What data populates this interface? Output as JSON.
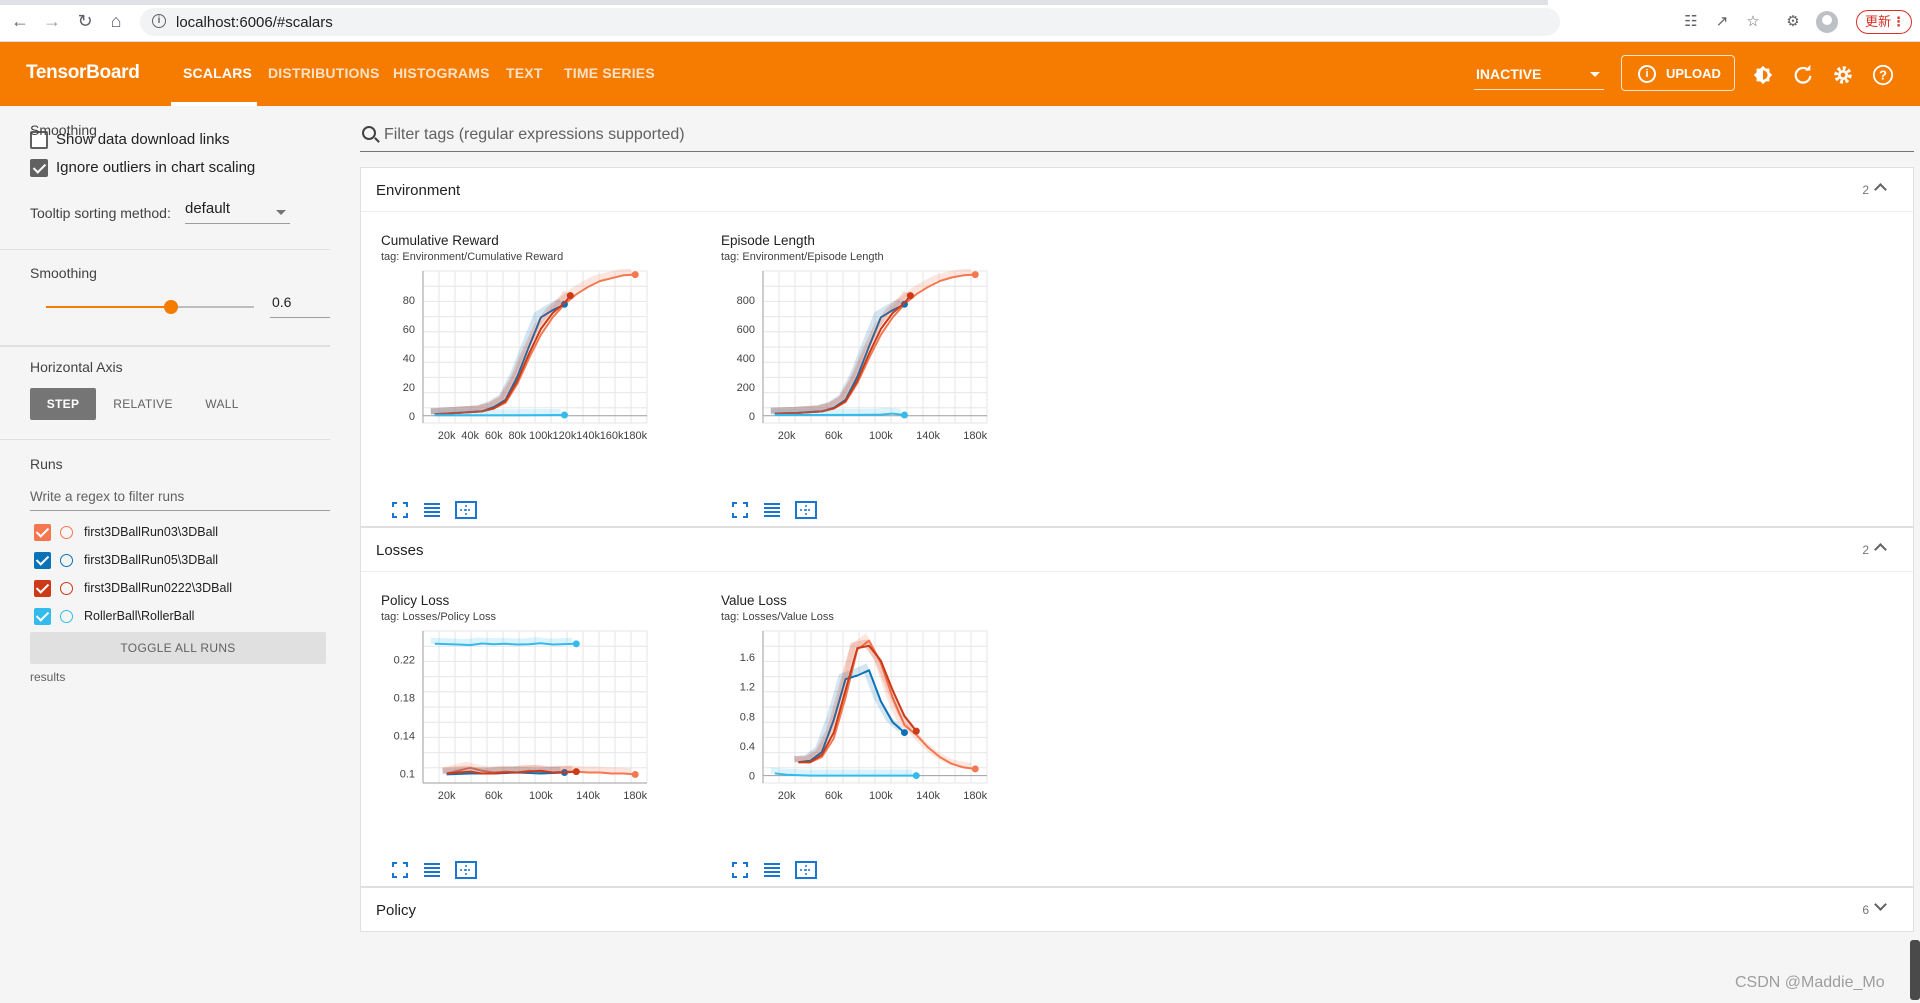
{
  "browser": {
    "url": "localhost:6006/#scalars",
    "update_label": "更新"
  },
  "header": {
    "logo": "TensorBoard",
    "tabs": [
      "SCALARS",
      "DISTRIBUTIONS",
      "HISTOGRAMS",
      "TEXT",
      "TIME SERIES"
    ],
    "active_tab": "SCALARS",
    "inactive_select": "INACTIVE",
    "upload_label": "UPLOAD"
  },
  "sidebar": {
    "show_download_links": "Show data download links",
    "show_download_checked": false,
    "ignore_outliers": "Ignore outliers in chart scaling",
    "ignore_outliers_checked": true,
    "tooltip_label": "Tooltip sorting method:",
    "tooltip_value": "default",
    "smoothing_label": "Smoothing",
    "smoothing_value": "0.6",
    "smoothing_fraction": 0.6,
    "horizontal_axis_label": "Horizontal Axis",
    "axis_options": [
      "STEP",
      "RELATIVE",
      "WALL"
    ],
    "axis_active": "STEP",
    "runs_label": "Runs",
    "runs_filter_placeholder": "Write a regex to filter runs",
    "runs": [
      {
        "name": "first3DBallRun03\\3DBall",
        "color": "#f4774f",
        "checked": true
      },
      {
        "name": "first3DBallRun05\\3DBall",
        "color": "#0b72b8",
        "checked": true
      },
      {
        "name": "first3DBallRun0222\\3DBall",
        "color": "#cc3a17",
        "checked": true
      },
      {
        "name": "RollerBall\\RollerBall",
        "color": "#33bbee",
        "checked": true
      }
    ],
    "toggle_all_label": "TOGGLE ALL RUNS",
    "results_label": "results"
  },
  "main": {
    "filter_placeholder": "Filter tags (regular expressions supported)",
    "sections": [
      {
        "title": "Environment",
        "count": "2",
        "expanded": true
      },
      {
        "title": "Losses",
        "count": "2",
        "expanded": true
      },
      {
        "title": "Policy",
        "count": "6",
        "expanded": false
      }
    ]
  },
  "chart_data": [
    {
      "type": "line",
      "title": "Cumulative Reward",
      "tag": "tag: Environment/Cumulative Reward",
      "xlim": [
        0,
        190000
      ],
      "ylim": [
        -5,
        100
      ],
      "xticks": [
        20000,
        40000,
        60000,
        80000,
        100000,
        120000,
        140000,
        160000,
        180000
      ],
      "xtick_labels": [
        "20k",
        "40k",
        "60k",
        "80k",
        "100k",
        "120k",
        "140k",
        "160k",
        "180k"
      ],
      "yticks": [
        0,
        20,
        40,
        60,
        80
      ],
      "ytick_labels": [
        "0",
        "20",
        "40",
        "60",
        "80"
      ],
      "series": [
        {
          "color": "#f4774f",
          "x": [
            10000,
            30000,
            50000,
            60000,
            70000,
            80000,
            90000,
            100000,
            110000,
            120000,
            130000,
            140000,
            150000,
            160000,
            170000,
            180000
          ],
          "y": [
            1,
            2,
            3,
            5,
            9,
            22,
            40,
            56,
            68,
            77,
            84,
            89,
            93,
            95,
            97,
            97.5
          ]
        },
        {
          "color": "#0b72b8",
          "x": [
            10000,
            30000,
            50000,
            60000,
            70000,
            80000,
            90000,
            100000,
            110000,
            120000
          ],
          "y": [
            1,
            2,
            3,
            6,
            11,
            27,
            48,
            68,
            73,
            77
          ]
        },
        {
          "color": "#cc3a17",
          "x": [
            10000,
            30000,
            50000,
            60000,
            70000,
            80000,
            90000,
            100000,
            110000,
            120000,
            125000
          ],
          "y": [
            1,
            2,
            3,
            5,
            10,
            24,
            43,
            60,
            71,
            78,
            83
          ]
        },
        {
          "color": "#33bbee",
          "x": [
            10000,
            40000,
            80000,
            120000
          ],
          "y": [
            0.3,
            0.3,
            0.4,
            0.5
          ]
        }
      ]
    },
    {
      "type": "line",
      "title": "Episode Length",
      "tag": "tag: Environment/Episode Length",
      "xlim": [
        0,
        190000
      ],
      "ylim": [
        -50,
        1000
      ],
      "xticks": [
        20000,
        60000,
        100000,
        140000,
        180000
      ],
      "xtick_labels": [
        "20k",
        "60k",
        "100k",
        "140k",
        "180k"
      ],
      "yticks": [
        0,
        200,
        400,
        600,
        800
      ],
      "ytick_labels": [
        "0",
        "200",
        "400",
        "600",
        "800"
      ],
      "series": [
        {
          "color": "#f4774f",
          "x": [
            10000,
            30000,
            50000,
            60000,
            70000,
            80000,
            90000,
            100000,
            110000,
            120000,
            130000,
            140000,
            150000,
            160000,
            170000,
            180000
          ],
          "y": [
            15,
            20,
            30,
            50,
            95,
            225,
            400,
            560,
            680,
            770,
            840,
            890,
            930,
            955,
            970,
            975
          ]
        },
        {
          "color": "#0b72b8",
          "x": [
            10000,
            30000,
            50000,
            60000,
            70000,
            80000,
            90000,
            100000,
            110000,
            120000
          ],
          "y": [
            15,
            20,
            30,
            55,
            110,
            270,
            480,
            680,
            730,
            770
          ]
        },
        {
          "color": "#cc3a17",
          "x": [
            10000,
            30000,
            50000,
            60000,
            70000,
            80000,
            90000,
            100000,
            110000,
            120000,
            125000
          ],
          "y": [
            15,
            20,
            30,
            50,
            100,
            240,
            430,
            600,
            710,
            780,
            830
          ]
        },
        {
          "color": "#33bbee",
          "x": [
            10000,
            40000,
            80000,
            100000,
            110000,
            120000
          ],
          "y": [
            5,
            5,
            6,
            8,
            15,
            5
          ]
        }
      ]
    },
    {
      "type": "line",
      "title": "Policy Loss",
      "tag": "tag: Losses/Policy Loss",
      "xlim": [
        0,
        190000
      ],
      "ylim": [
        0.09,
        0.25
      ],
      "xticks": [
        20000,
        60000,
        100000,
        140000,
        180000
      ],
      "xtick_labels": [
        "20k",
        "60k",
        "100k",
        "140k",
        "180k"
      ],
      "yticks": [
        0.1,
        0.14,
        0.18,
        0.22
      ],
      "ytick_labels": [
        "0.1",
        "0.14",
        "0.18",
        "0.22"
      ],
      "series": [
        {
          "color": "#33bbee",
          "x": [
            10000,
            30000,
            40000,
            50000,
            60000,
            70000,
            80000,
            90000,
            100000,
            110000,
            120000,
            130000
          ],
          "y": [
            0.2365,
            0.2358,
            0.2352,
            0.2368,
            0.236,
            0.2365,
            0.2358,
            0.236,
            0.237,
            0.2358,
            0.2362,
            0.2365
          ]
        },
        {
          "color": "#f4774f",
          "x": [
            20000,
            30000,
            40000,
            50000,
            60000,
            70000,
            80000,
            90000,
            100000,
            110000,
            120000,
            130000,
            140000,
            150000,
            160000,
            170000,
            180000
          ],
          "y": [
            0.1,
            0.103,
            0.106,
            0.103,
            0.101,
            0.102,
            0.101,
            0.103,
            0.102,
            0.101,
            0.102,
            0.102,
            0.101,
            0.101,
            0.1,
            0.1,
            0.099
          ]
        },
        {
          "color": "#0b72b8",
          "x": [
            20000,
            40000,
            60000,
            80000,
            100000,
            120000
          ],
          "y": [
            0.099,
            0.1,
            0.1,
            0.101,
            0.1,
            0.101
          ]
        },
        {
          "color": "#cc3a17",
          "x": [
            20000,
            30000,
            40000,
            50000,
            60000,
            70000,
            80000,
            90000,
            100000,
            110000,
            120000,
            130000
          ],
          "y": [
            0.1,
            0.101,
            0.102,
            0.1,
            0.1,
            0.101,
            0.101,
            0.102,
            0.103,
            0.101,
            0.101,
            0.102
          ]
        }
      ]
    },
    {
      "type": "line",
      "title": "Value Loss",
      "tag": "tag: Losses/Value Loss",
      "xlim": [
        0,
        190000
      ],
      "ylim": [
        -0.1,
        1.95
      ],
      "xticks": [
        20000,
        60000,
        100000,
        140000,
        180000
      ],
      "xtick_labels": [
        "20k",
        "60k",
        "100k",
        "140k",
        "180k"
      ],
      "yticks": [
        0,
        0.4,
        0.8,
        1.2,
        1.6
      ],
      "ytick_labels": [
        "0",
        "0.4",
        "0.8",
        "1.2",
        "1.6"
      ],
      "series": [
        {
          "color": "#f4774f",
          "x": [
            30000,
            40000,
            50000,
            60000,
            70000,
            80000,
            90000,
            100000,
            110000,
            120000,
            130000,
            140000,
            150000,
            160000,
            170000,
            180000
          ],
          "y": [
            0.18,
            0.18,
            0.25,
            0.5,
            1.05,
            1.7,
            1.82,
            1.52,
            1.05,
            0.68,
            0.55,
            0.38,
            0.25,
            0.16,
            0.11,
            0.09
          ]
        },
        {
          "color": "#0b72b8",
          "x": [
            30000,
            40000,
            50000,
            60000,
            70000,
            80000,
            90000,
            100000,
            110000,
            120000
          ],
          "y": [
            0.18,
            0.2,
            0.32,
            0.75,
            1.3,
            1.35,
            1.42,
            1.0,
            0.72,
            0.58
          ]
        },
        {
          "color": "#cc3a17",
          "x": [
            30000,
            40000,
            50000,
            60000,
            70000,
            80000,
            90000,
            100000,
            110000,
            120000,
            130000
          ],
          "y": [
            0.18,
            0.18,
            0.28,
            0.58,
            1.15,
            1.72,
            1.75,
            1.55,
            1.15,
            0.8,
            0.6
          ]
        },
        {
          "color": "#33bbee",
          "x": [
            10000,
            20000,
            40000,
            80000,
            120000,
            130000
          ],
          "y": [
            0.03,
            0.01,
            0.0,
            0.0,
            0.0,
            0.0
          ]
        }
      ]
    }
  ]
}
